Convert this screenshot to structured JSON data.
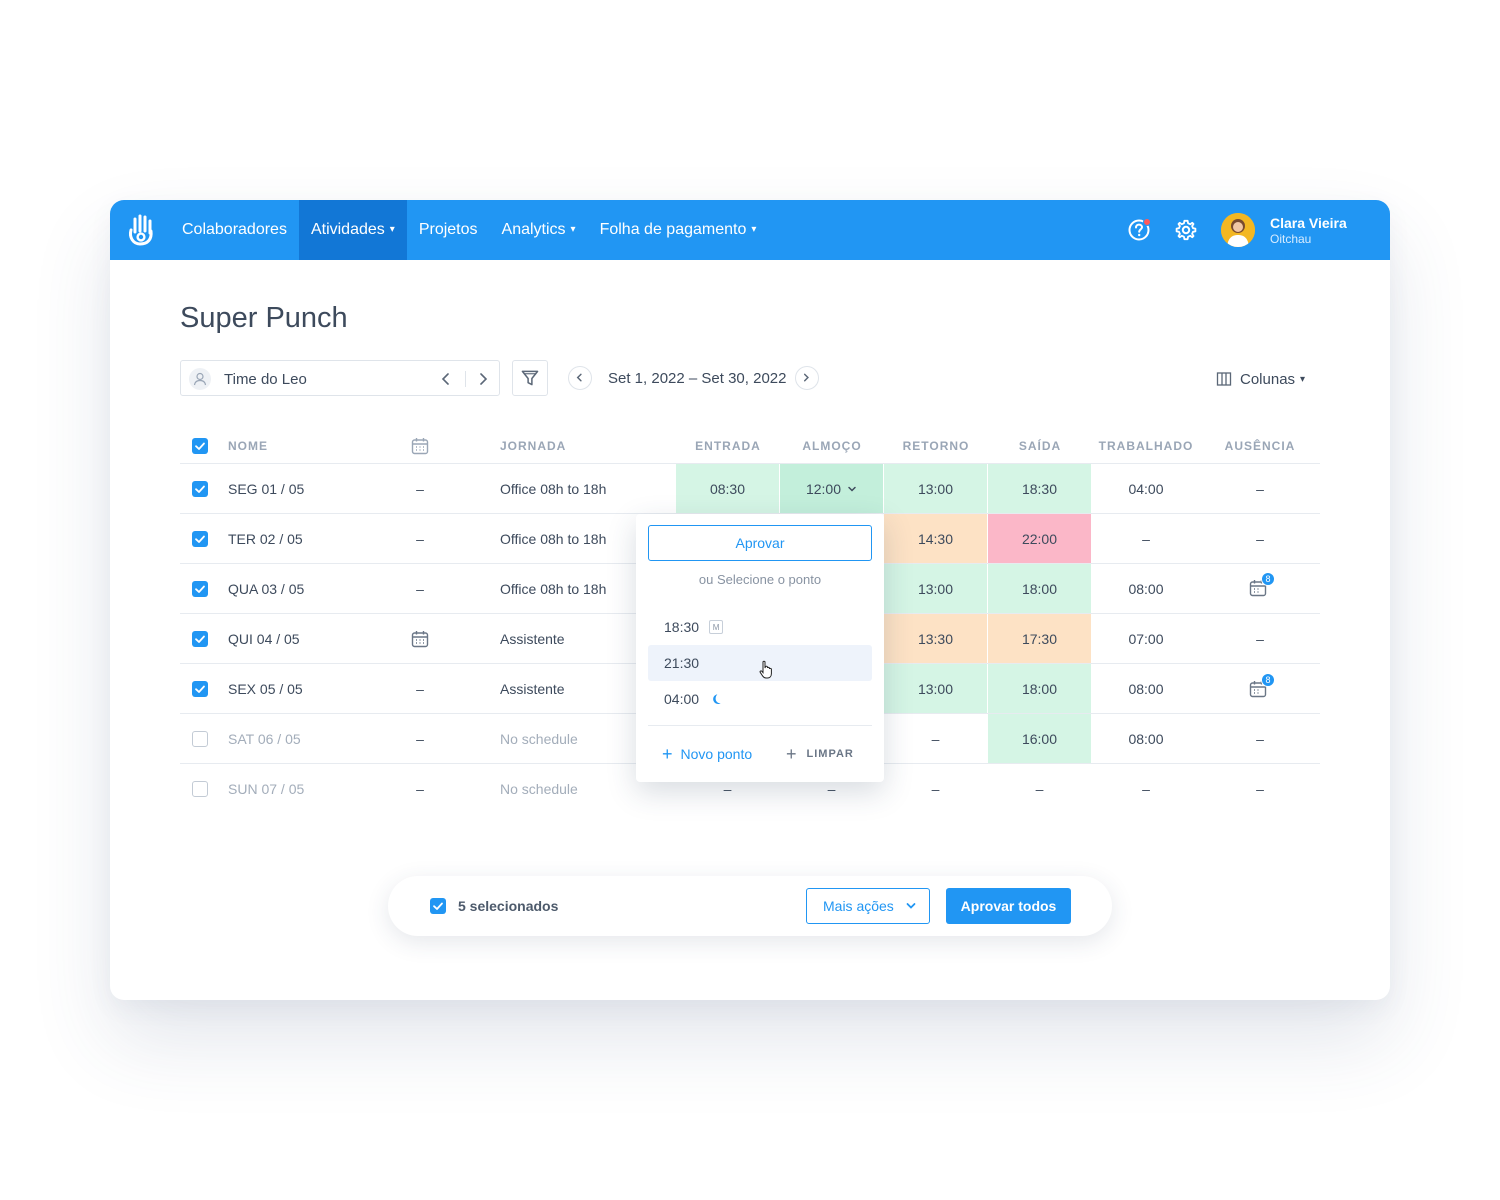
{
  "nav": {
    "items": [
      {
        "label": "Colaboradores",
        "dropdown": false,
        "active": false
      },
      {
        "label": "Atividades",
        "dropdown": true,
        "active": true
      },
      {
        "label": "Projetos",
        "dropdown": false,
        "active": false
      },
      {
        "label": "Analytics",
        "dropdown": true,
        "active": false
      },
      {
        "label": "Folha de pagamento",
        "dropdown": true,
        "active": false
      }
    ],
    "user": {
      "name": "Clara Vieira",
      "org": "Oitchau"
    },
    "icons": [
      "hand-logo-icon",
      "help-icon",
      "gear-icon"
    ]
  },
  "page": {
    "title": "Super Punch"
  },
  "filters": {
    "team": "Time do Leo",
    "date_range": "Set 1, 2022 – Set 30, 2022",
    "columns_label": "Colunas"
  },
  "table": {
    "headers": {
      "name": "NOME",
      "schedule": "JORNADA",
      "entrada": "ENTRADA",
      "almoco": "ALMOÇO",
      "retorno": "RETORNO",
      "saida": "SAÍDA",
      "trabalhado": "TRABALHADO",
      "ausencia": "AUSÊNCIA"
    },
    "rows": [
      {
        "checked": true,
        "name": "SEG 01 / 05",
        "cal": "–",
        "schedule": "Office 08h to 18h",
        "entrada": "08:30",
        "almoco": "12:00",
        "retorno": "13:00",
        "saida": "18:30",
        "trabalhado": "04:00",
        "ausencia": "–"
      },
      {
        "checked": true,
        "name": "TER 02 / 05",
        "cal": "–",
        "schedule": "Office 08h to 18h",
        "entrada": "",
        "almoco": "",
        "retorno": "14:30",
        "saida": "22:00",
        "trabalhado": "–",
        "ausencia": "–"
      },
      {
        "checked": true,
        "name": "QUA 03 / 05",
        "cal": "–",
        "schedule": "Office 08h to 18h",
        "entrada": "",
        "almoco": "",
        "retorno": "13:00",
        "saida": "18:00",
        "trabalhado": "08:00",
        "ausencia_badge": "8"
      },
      {
        "checked": true,
        "name": "QUI 04 / 05",
        "cal_icon": true,
        "schedule": "Assistente",
        "entrada": "",
        "almoco": "",
        "retorno": "13:30",
        "saida": "17:30",
        "trabalhado": "07:00",
        "ausencia": "–"
      },
      {
        "checked": true,
        "name": "SEX 05 / 05",
        "cal": "–",
        "schedule": "Assistente",
        "entrada": "",
        "almoco": "",
        "retorno": "13:00",
        "saida": "18:00",
        "trabalhado": "08:00",
        "ausencia_badge": "8"
      },
      {
        "checked": false,
        "name": "SAT 06 / 05",
        "cal": "–",
        "schedule": "No schedule",
        "entrada": "",
        "almoco": "",
        "retorno": "–",
        "saida": "16:00",
        "trabalhado": "08:00",
        "ausencia": "–"
      },
      {
        "checked": false,
        "name": "SUN 07 / 05",
        "cal": "–",
        "schedule": "No schedule",
        "entrada": "–",
        "almoco": "–",
        "retorno": "–",
        "saida": "–",
        "trabalhado": "–",
        "ausencia": "–"
      }
    ]
  },
  "popup": {
    "approve": "Aprovar",
    "or_select": "ou Selecione o ponto",
    "options": [
      {
        "time": "18:30",
        "tag": "M"
      },
      {
        "time": "21:30"
      },
      {
        "time": "04:00",
        "icon": "moon-icon"
      }
    ],
    "new_point": "Novo ponto",
    "clear": "LIMPAR"
  },
  "bulk": {
    "selected": "5 selecionados",
    "more_actions": "Mais ações",
    "approve_all": "Aprovar todos"
  },
  "colors": {
    "primary": "#2196f3",
    "nav_active": "#1277d6",
    "green": "#d5f5e5",
    "orange": "#fde2c5",
    "red": "#fbb7c8"
  }
}
